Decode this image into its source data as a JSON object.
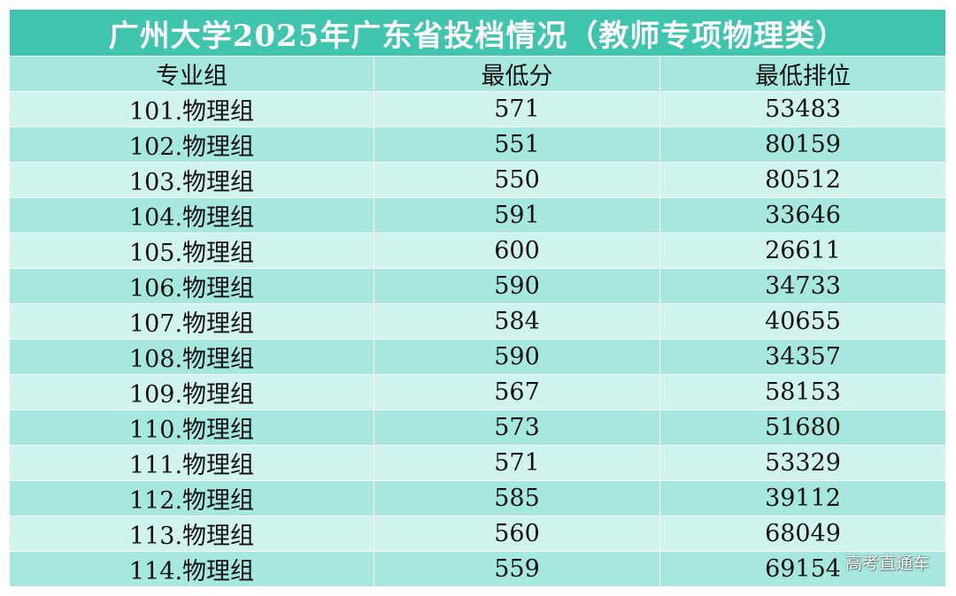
{
  "title": "广州大学2025年广东省投档情况（教师专项物理类）",
  "columns": [
    "专业组",
    "最低分",
    "最低排位"
  ],
  "rows": [
    {
      "group": "101.物理组",
      "min_score": "571",
      "min_rank": "53483"
    },
    {
      "group": "102.物理组",
      "min_score": "551",
      "min_rank": "80159"
    },
    {
      "group": "103.物理组",
      "min_score": "550",
      "min_rank": "80512"
    },
    {
      "group": "104.物理组",
      "min_score": "591",
      "min_rank": "33646"
    },
    {
      "group": "105.物理组",
      "min_score": "600",
      "min_rank": "26611"
    },
    {
      "group": "106.物理组",
      "min_score": "590",
      "min_rank": "34733"
    },
    {
      "group": "107.物理组",
      "min_score": "584",
      "min_rank": "40655"
    },
    {
      "group": "108.物理组",
      "min_score": "590",
      "min_rank": "34357"
    },
    {
      "group": "109.物理组",
      "min_score": "567",
      "min_rank": "58153"
    },
    {
      "group": "110.物理组",
      "min_score": "573",
      "min_rank": "51680"
    },
    {
      "group": "111.物理组",
      "min_score": "571",
      "min_rank": "53329"
    },
    {
      "group": "112.物理组",
      "min_score": "585",
      "min_rank": "39112"
    },
    {
      "group": "113.物理组",
      "min_score": "560",
      "min_rank": "68049"
    },
    {
      "group": "114.物理组",
      "min_score": "559",
      "min_rank": "69154"
    }
  ],
  "watermark": "高考直通车",
  "colors": {
    "title_bg": "#3fc4ad",
    "row_light": "#d1f3ee",
    "row_dark": "#a6e8dd"
  }
}
